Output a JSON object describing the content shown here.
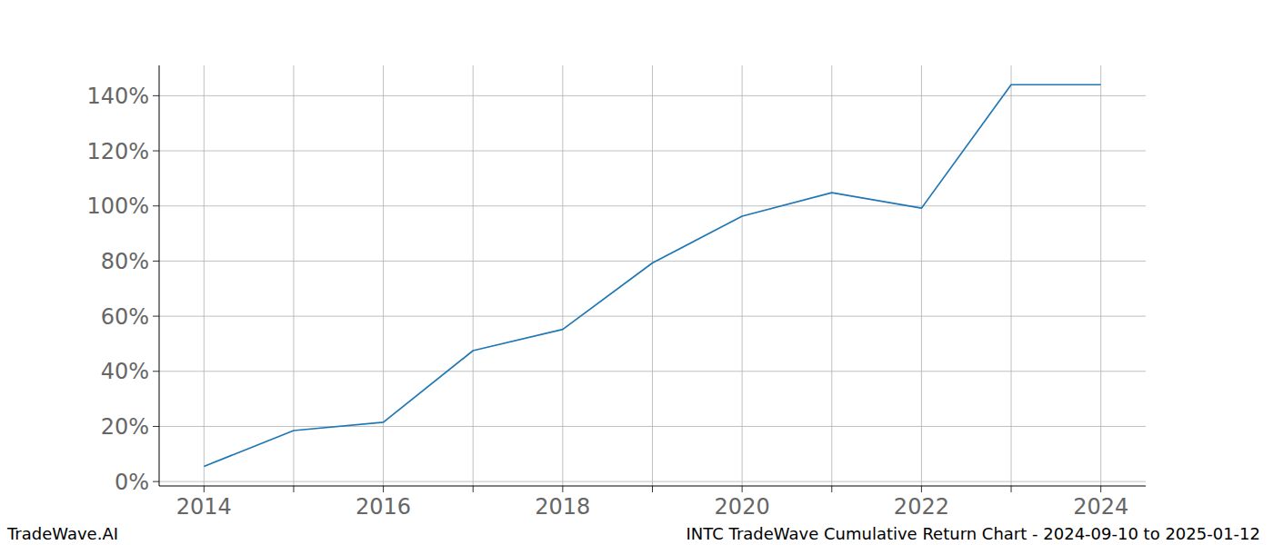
{
  "chart_data": {
    "type": "line",
    "title": "INTC TradeWave Cumulative Return Chart - 2024-09-10 to 2025-01-12",
    "annotations": [
      "TradeWave.AI"
    ],
    "x": [
      2014,
      2015,
      2016,
      2017,
      2018,
      2019,
      2020,
      2021,
      2022,
      2023,
      2024
    ],
    "series": [
      {
        "name": "INTC",
        "color": "#1f77b4",
        "values": [
          5.5,
          18.5,
          21.5,
          47.5,
          55.2,
          79.3,
          96.3,
          104.8,
          99.2,
          144,
          144
        ]
      }
    ],
    "xlim": [
      2013.5,
      2024.5
    ],
    "xticks": [
      2014,
      {
        "value": 2015,
        "label": null
      },
      2016,
      {
        "value": 2017,
        "label": null
      },
      2018,
      {
        "value": 2019,
        "label": null
      },
      2020,
      {
        "value": 2021,
        "label": null
      },
      2022,
      {
        "value": 2023,
        "label": null
      },
      2024
    ],
    "ylim": [
      -1.6,
      151
    ],
    "yticks": [
      {
        "value": 0,
        "label": "0%"
      },
      {
        "value": 20,
        "label": "20%"
      },
      {
        "value": 40,
        "label": "40%"
      },
      {
        "value": 60,
        "label": "60%"
      },
      {
        "value": 80,
        "label": "80%"
      },
      {
        "value": 100,
        "label": "100%"
      },
      {
        "value": 120,
        "label": "120%"
      },
      {
        "value": 140,
        "label": "140%"
      }
    ],
    "grid": true
  }
}
